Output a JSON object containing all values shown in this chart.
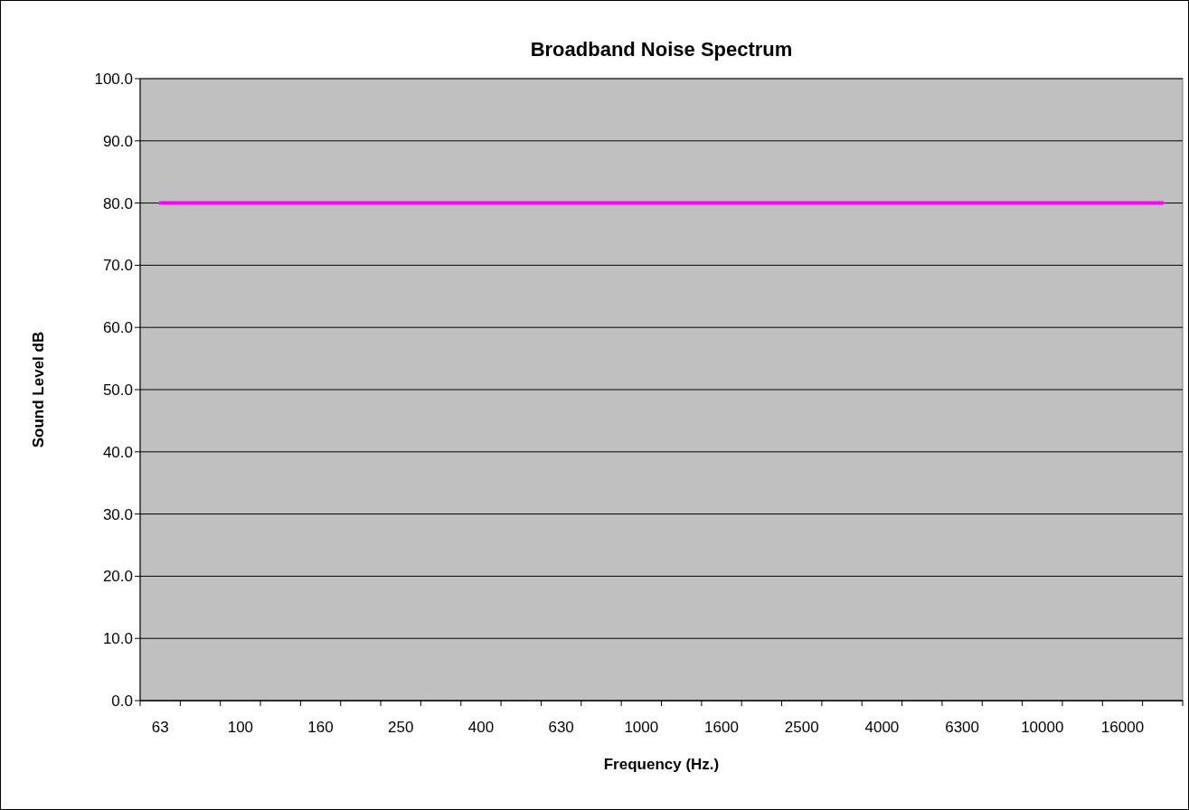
{
  "chart_data": {
    "type": "line",
    "title": "Broadband Noise Spectrum",
    "xlabel": "Frequency (Hz.)",
    "ylabel": "Sound Level dB",
    "categories": [
      "63",
      null,
      "100",
      null,
      "160",
      null,
      "250",
      null,
      "400",
      null,
      "630",
      null,
      "1000",
      null,
      "1600",
      null,
      "2500",
      null,
      "4000",
      null,
      "6300",
      null,
      "10000",
      null,
      "16000",
      null
    ],
    "series": [
      {
        "color": "#ff00ff",
        "values": [
          80,
          80,
          80,
          80,
          80,
          80,
          80,
          80,
          80,
          80,
          80,
          80,
          80,
          80,
          80,
          80,
          80,
          80,
          80,
          80,
          80,
          80,
          80,
          80,
          80,
          80
        ]
      }
    ],
    "ylim": [
      0,
      100
    ],
    "yticks": [
      {
        "value": 0,
        "label": "0.0"
      },
      {
        "value": 10,
        "label": "10.0"
      },
      {
        "value": 20,
        "label": "20.0"
      },
      {
        "value": 30,
        "label": "30.0"
      },
      {
        "value": 40,
        "label": "40.0"
      },
      {
        "value": 50,
        "label": "50.0"
      },
      {
        "value": 60,
        "label": "60.0"
      },
      {
        "value": 70,
        "label": "70.0"
      },
      {
        "value": 80,
        "label": "80.0"
      },
      {
        "value": 90,
        "label": "90.0"
      },
      {
        "value": 100,
        "label": "100.0"
      }
    ],
    "grid": "y",
    "marker": "none",
    "line_style": "solid"
  }
}
